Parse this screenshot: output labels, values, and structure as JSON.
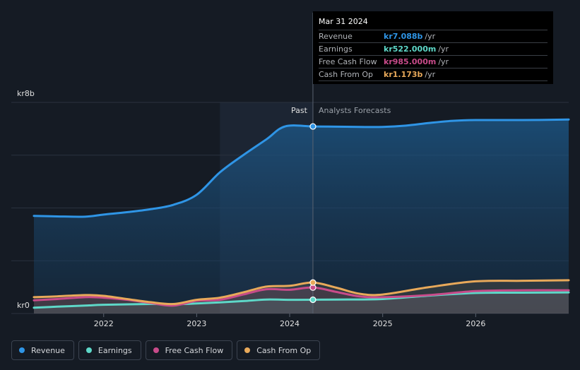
{
  "chart_data": {
    "type": "line",
    "ylabel_top": "kr8b",
    "ylabel_bottom": "kr0",
    "ylim": [
      0,
      8
    ],
    "xlim": [
      2021.25,
      2027.0
    ],
    "x_ticks": [
      "2022",
      "2023",
      "2024",
      "2025",
      "2026"
    ],
    "x_tick_values": [
      2022,
      2023,
      2024,
      2025,
      2026
    ],
    "divider_x": 2024.25,
    "past_shade_start": 2023.25,
    "past_label": "Past",
    "forecast_label": "Analysts Forecasts",
    "series": [
      {
        "name": "Revenue",
        "color": "#2f95e6",
        "x": [
          2021.25,
          2021.5,
          2021.8,
          2022.0,
          2022.25,
          2022.5,
          2022.75,
          2023.0,
          2023.25,
          2023.5,
          2023.75,
          2023.95,
          2024.25,
          2024.5,
          2024.75,
          2025.0,
          2025.25,
          2025.5,
          2025.75,
          2026.0,
          2026.5,
          2027.0
        ],
        "y": [
          3.7,
          3.68,
          3.67,
          3.75,
          3.84,
          3.95,
          4.12,
          4.5,
          5.35,
          6.0,
          6.6,
          7.09,
          7.088,
          7.08,
          7.07,
          7.07,
          7.12,
          7.22,
          7.3,
          7.33,
          7.33,
          7.35
        ]
      },
      {
        "name": "Earnings",
        "color": "#5ed8c8",
        "x": [
          2021.25,
          2021.5,
          2021.8,
          2022.0,
          2022.5,
          2022.75,
          2023.0,
          2023.25,
          2023.5,
          2023.75,
          2024.0,
          2024.25,
          2024.5,
          2025.0,
          2025.5,
          2026.0,
          2026.5,
          2027.0
        ],
        "y": [
          0.22,
          0.26,
          0.3,
          0.33,
          0.36,
          0.35,
          0.38,
          0.42,
          0.47,
          0.53,
          0.52,
          0.522,
          0.53,
          0.55,
          0.68,
          0.78,
          0.79,
          0.8
        ]
      },
      {
        "name": "Free Cash Flow",
        "color": "#c84b8a",
        "x": [
          2021.25,
          2021.5,
          2021.8,
          2022.0,
          2022.25,
          2022.5,
          2022.75,
          2023.0,
          2023.25,
          2023.5,
          2023.75,
          2024.0,
          2024.25,
          2024.5,
          2024.75,
          2025.0,
          2025.5,
          2026.0,
          2026.5,
          2027.0
        ],
        "y": [
          0.5,
          0.55,
          0.62,
          0.6,
          0.52,
          0.4,
          0.3,
          0.48,
          0.52,
          0.72,
          0.92,
          0.9,
          0.985,
          0.82,
          0.65,
          0.62,
          0.7,
          0.85,
          0.88,
          0.88
        ]
      },
      {
        "name": "Cash From Op",
        "color": "#e8a95a",
        "x": [
          2021.25,
          2021.5,
          2021.8,
          2022.0,
          2022.25,
          2022.5,
          2022.75,
          2023.0,
          2023.25,
          2023.5,
          2023.75,
          2024.0,
          2024.25,
          2024.5,
          2024.75,
          2025.0,
          2025.5,
          2026.0,
          2026.5,
          2027.0
        ],
        "y": [
          0.62,
          0.65,
          0.7,
          0.67,
          0.55,
          0.43,
          0.36,
          0.52,
          0.6,
          0.8,
          1.02,
          1.05,
          1.173,
          0.98,
          0.75,
          0.72,
          1.0,
          1.22,
          1.24,
          1.26
        ]
      }
    ],
    "highlight_x": 2024.25
  },
  "tooltip": {
    "date": "Mar 31 2024",
    "rows": [
      {
        "label": "Revenue",
        "value": "kr7.088b",
        "unit": "/yr",
        "color": "#2f95e6"
      },
      {
        "label": "Earnings",
        "value": "kr522.000m",
        "unit": "/yr",
        "color": "#5ed8c8"
      },
      {
        "label": "Free Cash Flow",
        "value": "kr985.000m",
        "unit": "/yr",
        "color": "#c84b8a"
      },
      {
        "label": "Cash From Op",
        "value": "kr1.173b",
        "unit": "/yr",
        "color": "#e8a95a"
      }
    ]
  },
  "legend": [
    {
      "label": "Revenue",
      "color": "#2f95e6"
    },
    {
      "label": "Earnings",
      "color": "#5ed8c8"
    },
    {
      "label": "Free Cash Flow",
      "color": "#c84b8a"
    },
    {
      "label": "Cash From Op",
      "color": "#e8a95a"
    }
  ]
}
